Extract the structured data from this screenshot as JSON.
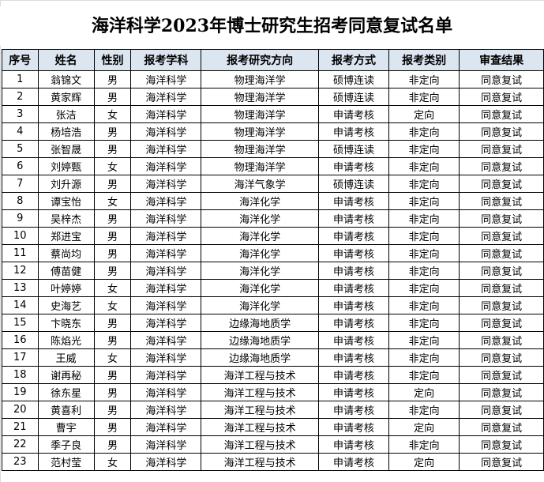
{
  "title": "海洋科学2023年博士研究生招考同意复试名单",
  "headers": [
    "序号",
    "姓名",
    "性别",
    "报考学科",
    "报考研究方向",
    "报考方式",
    "报考类别",
    "审查结果"
  ],
  "rows": [
    [
      "1",
      "翁锦文",
      "男",
      "海洋科学",
      "物理海洋学",
      "硕博连读",
      "非定向",
      "同意复试"
    ],
    [
      "2",
      "黄家辉",
      "男",
      "海洋科学",
      "物理海洋学",
      "硕博连读",
      "非定向",
      "同意复试"
    ],
    [
      "3",
      "张洁",
      "女",
      "海洋科学",
      "物理海洋学",
      "申请考核",
      "定向",
      "同意复试"
    ],
    [
      "4",
      "杨培浩",
      "男",
      "海洋科学",
      "物理海洋学",
      "申请考核",
      "非定向",
      "同意复试"
    ],
    [
      "5",
      "张智晟",
      "男",
      "海洋科学",
      "物理海洋学",
      "硕博连读",
      "非定向",
      "同意复试"
    ],
    [
      "6",
      "刘婷甄",
      "女",
      "海洋科学",
      "物理海洋学",
      "申请考核",
      "非定向",
      "同意复试"
    ],
    [
      "7",
      "刘升源",
      "男",
      "海洋科学",
      "海洋气象学",
      "硕博连读",
      "非定向",
      "同意复试"
    ],
    [
      "8",
      "谭宝怡",
      "女",
      "海洋科学",
      "海洋化学",
      "申请考核",
      "非定向",
      "同意复试"
    ],
    [
      "9",
      "吴梓杰",
      "男",
      "海洋科学",
      "海洋化学",
      "申请考核",
      "非定向",
      "同意复试"
    ],
    [
      "10",
      "郑进宝",
      "男",
      "海洋科学",
      "海洋化学",
      "申请考核",
      "非定向",
      "同意复试"
    ],
    [
      "11",
      "蔡尚均",
      "男",
      "海洋科学",
      "海洋化学",
      "申请考核",
      "非定向",
      "同意复试"
    ],
    [
      "12",
      "傅苗健",
      "男",
      "海洋科学",
      "海洋化学",
      "申请考核",
      "非定向",
      "同意复试"
    ],
    [
      "13",
      "叶婷婷",
      "女",
      "海洋科学",
      "海洋化学",
      "申请考核",
      "非定向",
      "同意复试"
    ],
    [
      "14",
      "史海艺",
      "女",
      "海洋科学",
      "海洋化学",
      "申请考核",
      "非定向",
      "同意复试"
    ],
    [
      "15",
      "卞晓东",
      "男",
      "海洋科学",
      "边缘海地质学",
      "申请考核",
      "非定向",
      "同意复试"
    ],
    [
      "16",
      "陈焰光",
      "男",
      "海洋科学",
      "边缘海地质学",
      "申请考核",
      "非定向",
      "同意复试"
    ],
    [
      "17",
      "王威",
      "女",
      "海洋科学",
      "边缘海地质学",
      "申请考核",
      "非定向",
      "同意复试"
    ],
    [
      "18",
      "谢再秘",
      "男",
      "海洋科学",
      "海洋工程与技术",
      "申请考核",
      "非定向",
      "同意复试"
    ],
    [
      "19",
      "徐东星",
      "男",
      "海洋科学",
      "海洋工程与技术",
      "申请考核",
      "定向",
      "同意复试"
    ],
    [
      "20",
      "黄喜利",
      "男",
      "海洋科学",
      "海洋工程与技术",
      "申请考核",
      "非定向",
      "同意复试"
    ],
    [
      "21",
      "曹宇",
      "男",
      "海洋科学",
      "海洋工程与技术",
      "申请考核",
      "定向",
      "同意复试"
    ],
    [
      "22",
      "季子良",
      "男",
      "海洋科学",
      "海洋工程与技术",
      "申请考核",
      "非定向",
      "同意复试"
    ],
    [
      "23",
      "范村莹",
      "女",
      "海洋科学",
      "海洋工程与技术",
      "申请考核",
      "定向",
      "同意复试"
    ]
  ]
}
